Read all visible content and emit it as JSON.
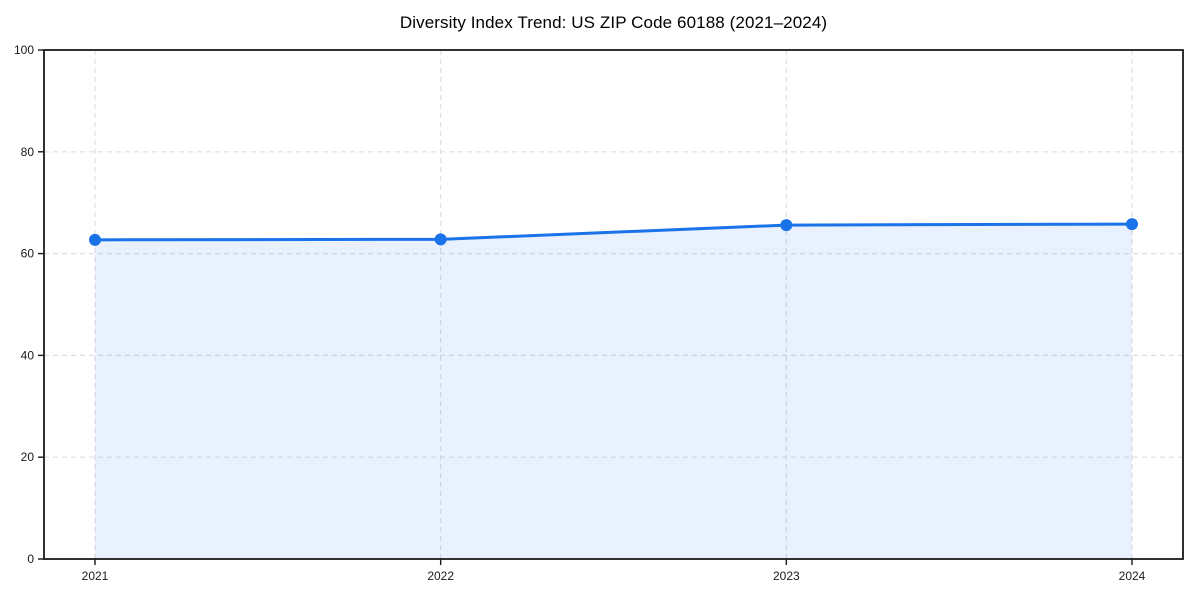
{
  "chart_data": {
    "type": "line",
    "title": "Diversity Index Trend: US ZIP Code 60188 (2021–2024)",
    "x": [
      "2021",
      "2022",
      "2023",
      "2024"
    ],
    "values": [
      62.7,
      62.8,
      65.6,
      65.8
    ],
    "xlabel": "",
    "ylabel": "",
    "ylim": [
      0,
      100
    ],
    "yticks": [
      0,
      20,
      40,
      60,
      80,
      100
    ],
    "grid": true,
    "grid_style": "dashed",
    "legend": false,
    "area_fill": true,
    "area_opacity": 0.1,
    "colors": {
      "line": "#1a73e8",
      "marker": "#1a73e8",
      "grid": "#dcdcdc",
      "spine": "#1a1a1a",
      "title_text": "#000000",
      "tick_text": "#1a1a1a",
      "background": "#ffffff"
    }
  }
}
